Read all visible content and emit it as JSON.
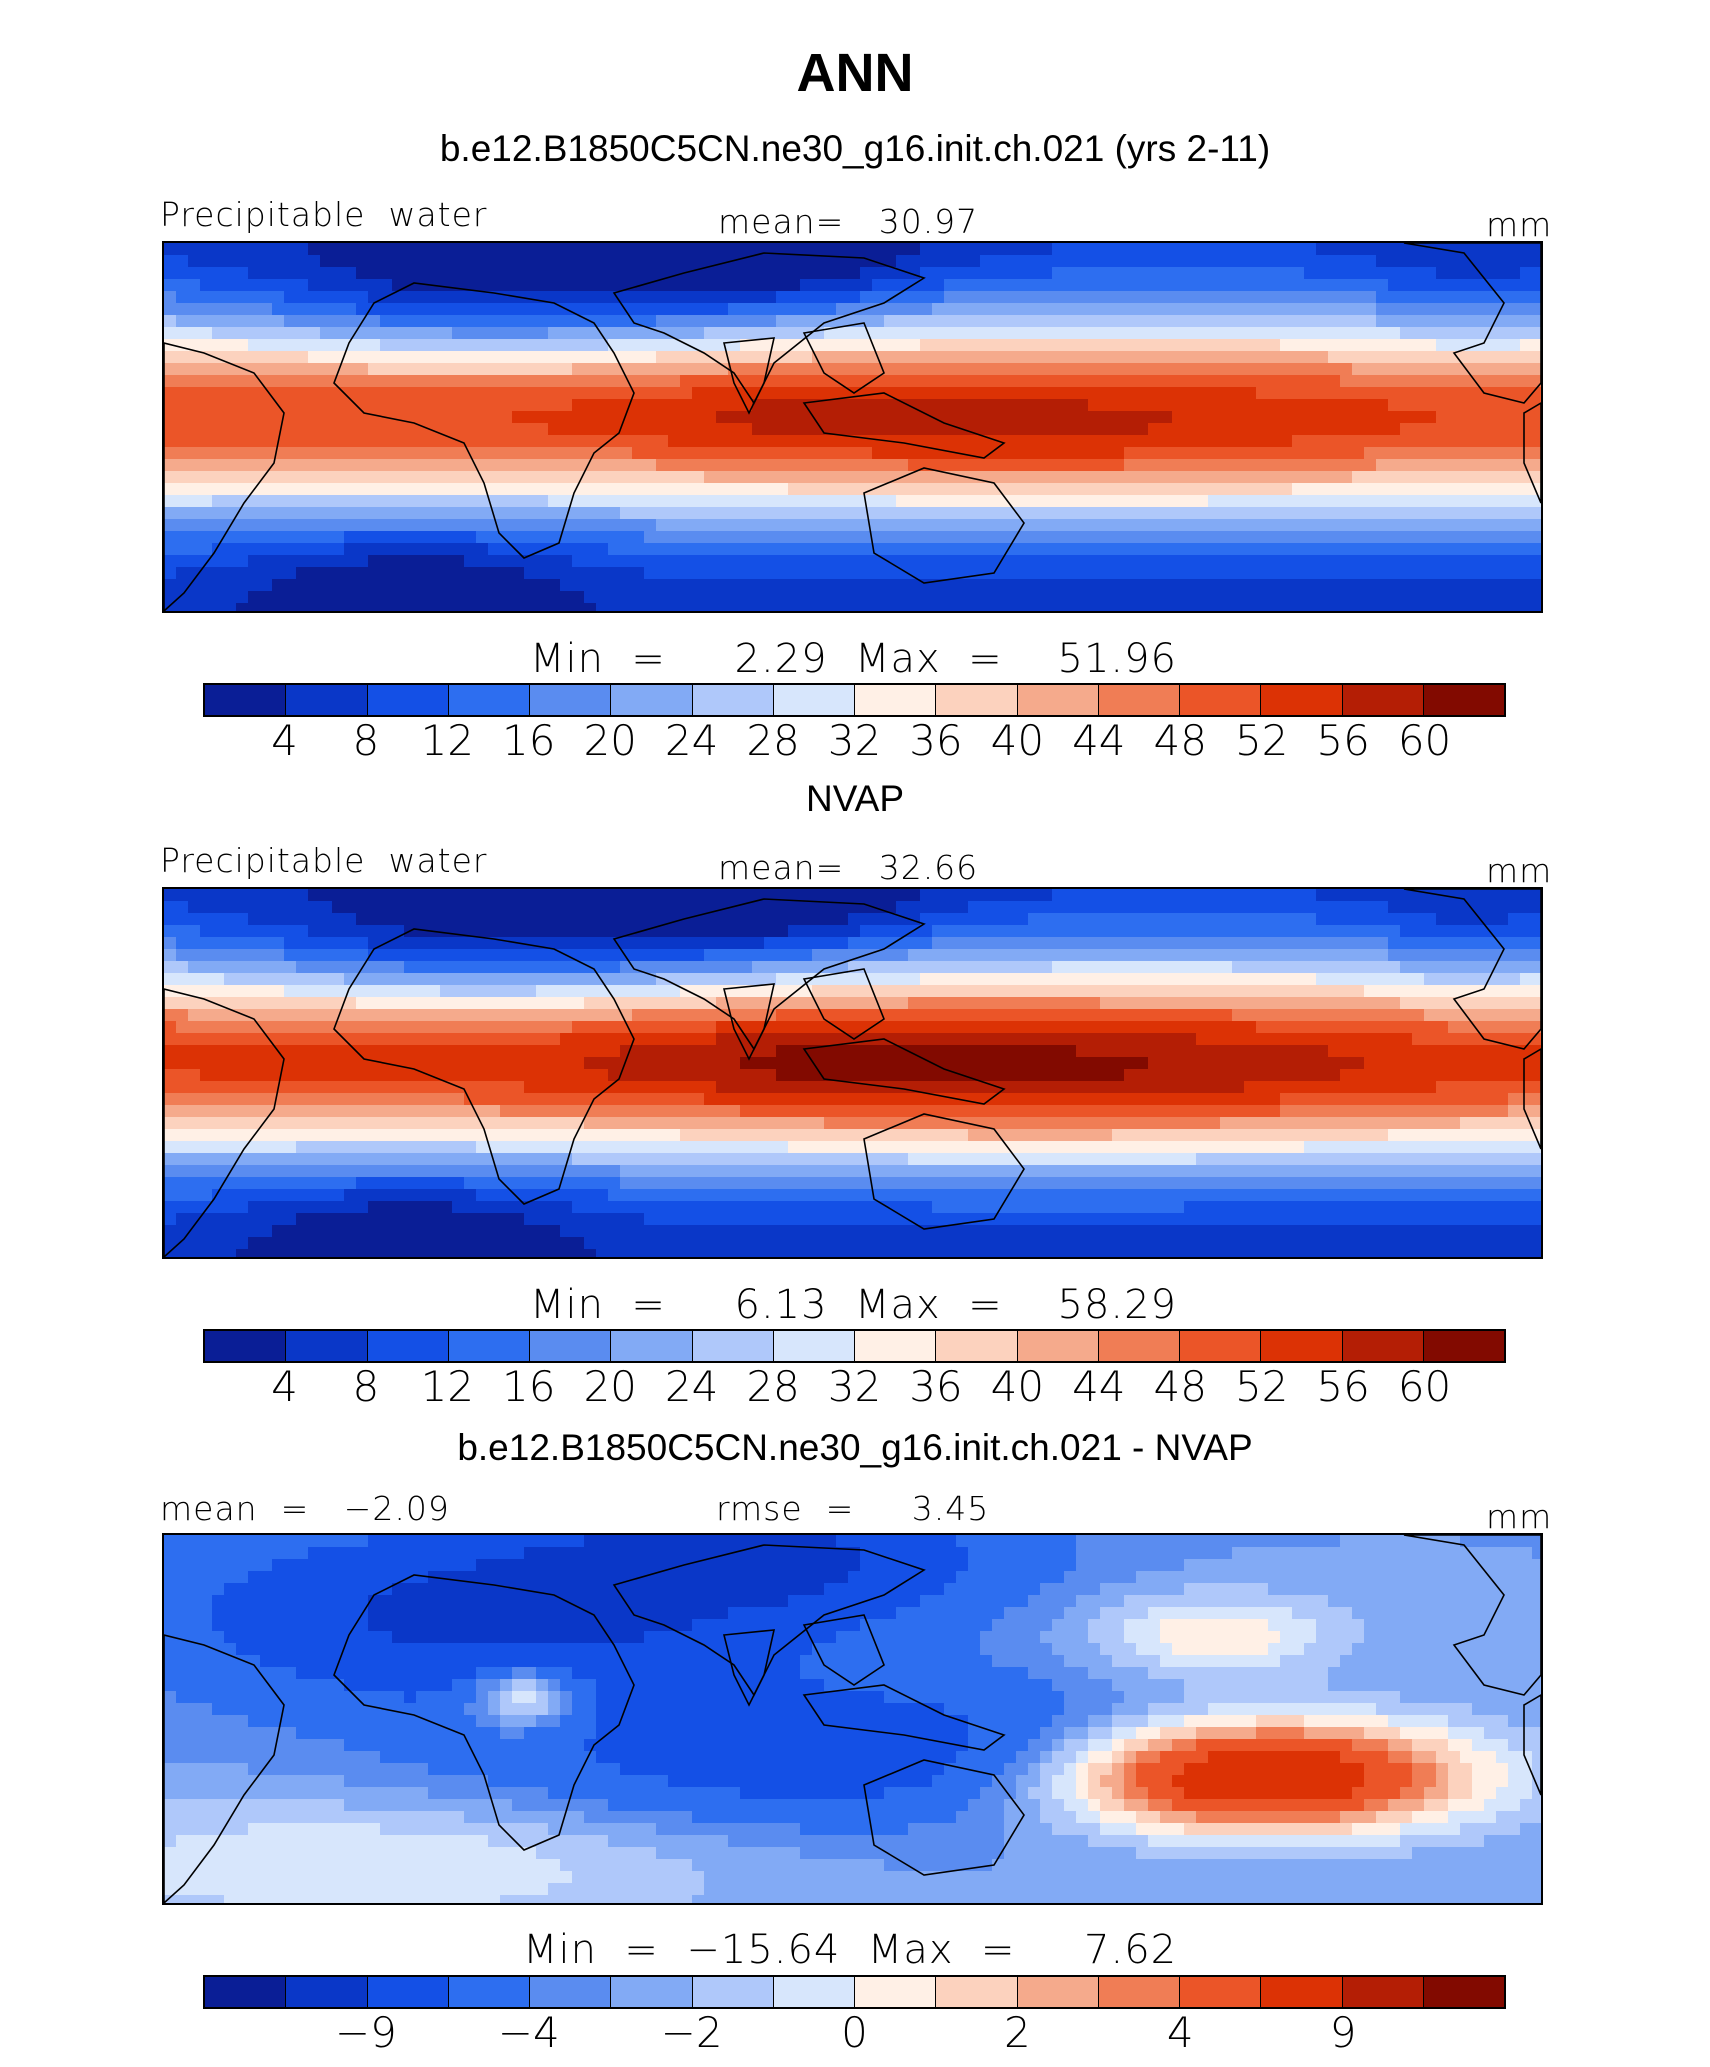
{
  "title": "ANN",
  "colors": [
    "#0a1e96",
    "#0a37c8",
    "#1450e6",
    "#2d6ef0",
    "#5a8cf0",
    "#82aaf5",
    "#afc8fa",
    "#d7e6fc",
    "#fff0e6",
    "#fcd2be",
    "#f5aa8c",
    "#f07d55",
    "#eb5528",
    "#dc3205",
    "#b41e05",
    "#820a00"
  ],
  "panels": [
    {
      "title": "b.e12.B1850C5CN.ne30_g16.init.ch.021 (yrs 2-11)",
      "left_label": "Precipitable  water",
      "center_label": "mean=   30.97",
      "right_label": "mm",
      "minmax": "Min  =     2.29  Max  =    51.96",
      "ticks": [
        "4",
        "8",
        "12",
        "16",
        "20",
        "24",
        "28",
        "32",
        "36",
        "40",
        "44",
        "48",
        "52",
        "56",
        "60"
      ],
      "field": "model"
    },
    {
      "title": "NVAP",
      "left_label": "Precipitable  water",
      "center_label": "mean=   32.66",
      "right_label": "mm",
      "minmax": "Min  =     6.13  Max  =    58.29",
      "ticks": [
        "4",
        "8",
        "12",
        "16",
        "20",
        "24",
        "28",
        "32",
        "36",
        "40",
        "44",
        "48",
        "52",
        "56",
        "60"
      ],
      "field": "obs"
    },
    {
      "title": "b.e12.B1850C5CN.ne30_g16.init.ch.021 - NVAP",
      "left_label": "mean  =   −2.09",
      "center_label": "rmse  =     3.45",
      "right_label": "mm",
      "minmax": "Min  =  −15.64  Max  =     7.62",
      "ticks": [
        "−9",
        "−4",
        "−2",
        "0",
        "2",
        "4",
        "9"
      ],
      "tick_slots": [
        2,
        4,
        6,
        8,
        10,
        12,
        14
      ],
      "field": "diff"
    }
  ]
}
